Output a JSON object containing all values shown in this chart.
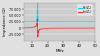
{
  "xlabel": "MHz",
  "ylabel": "Impedance (Ω)",
  "Re_color": "#00ccff",
  "Im_color": "#ff2020",
  "bg_color": "#e0e0e0",
  "plot_bg": "#cccccc",
  "f0": 13.56,
  "Q": 60,
  "R_base": 25000,
  "peak_scale": 75000,
  "xlim_min": 5,
  "xlim_max": 50,
  "ylim_min": -50000,
  "ylim_max": 100000,
  "yticks": [
    -25000,
    0,
    25000,
    50000,
    75000
  ],
  "ytick_labels": [
    "-25 000",
    "0",
    "25 000",
    "50 000",
    "75 000"
  ],
  "xticks": [
    10,
    20,
    30,
    40,
    50
  ],
  "Re_label": "Re(Z₁)",
  "Im_label": "Im(Z₁)"
}
